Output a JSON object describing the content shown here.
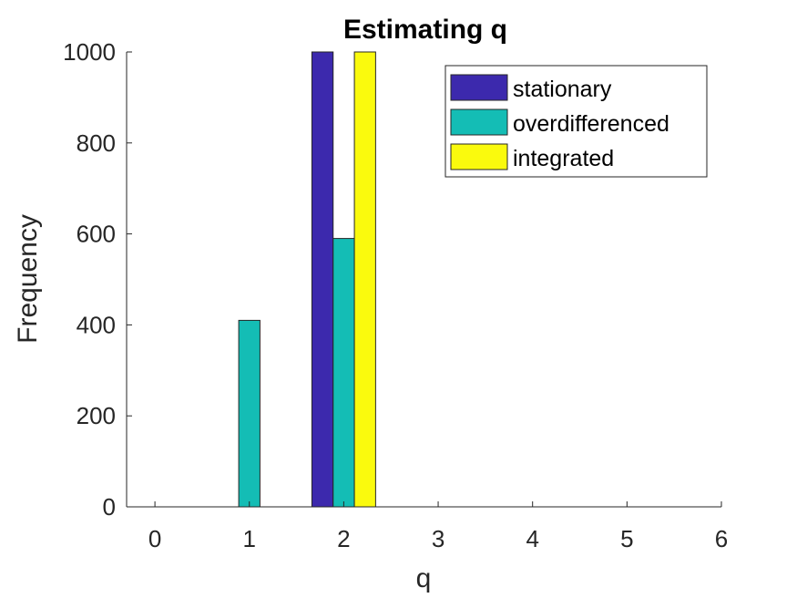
{
  "chart_data": {
    "type": "bar",
    "title": "Estimating q",
    "xlabel": "q",
    "ylabel": "Frequency",
    "x": [
      0,
      1,
      2,
      3,
      4,
      5
    ],
    "xticks": [
      "0",
      "1",
      "2",
      "3",
      "4",
      "5",
      "6"
    ],
    "xlim": [
      -0.3,
      6
    ],
    "yticks": [
      "0",
      "200",
      "400",
      "600",
      "800",
      "1000"
    ],
    "ylim": [
      0,
      1000
    ],
    "grid": false,
    "legend_position": "top-right",
    "series": [
      {
        "name": "stationary",
        "color": "#3c29ad",
        "values": [
          0,
          0,
          1000,
          0,
          0,
          0
        ]
      },
      {
        "name": "overdifferenced",
        "color": "#14bdb5",
        "values": [
          0,
          410,
          590,
          0,
          0,
          0
        ]
      },
      {
        "name": "integrated",
        "color": "#fafa0d",
        "values": [
          0,
          0,
          1000,
          0,
          0,
          0
        ]
      }
    ]
  }
}
